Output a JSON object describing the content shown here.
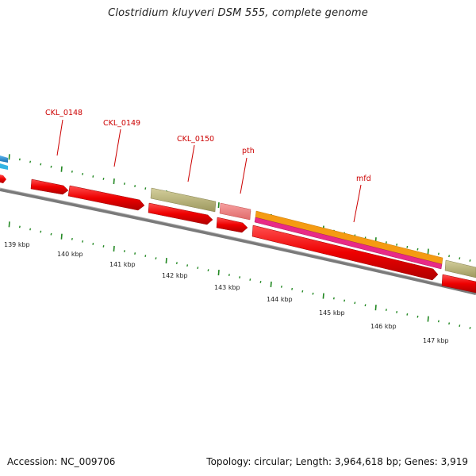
{
  "title": "Clostridium kluyveri DSM 555, complete genome",
  "footer": {
    "accession_label": "Accession:",
    "accession_value": "NC_009706",
    "topology_label": "Topology:",
    "topology_value": "circular",
    "length_label": "Length:",
    "length_value": "3,964,618 bp",
    "genes_label": "Genes:",
    "genes_value": "3,919"
  },
  "gene_labels": [
    {
      "name": "CKL_0148"
    },
    {
      "name": "CKL_0149"
    },
    {
      "name": "CKL_0150"
    },
    {
      "name": "pth"
    },
    {
      "name": "mfd"
    }
  ],
  "scale_ticks": [
    "139 kbp",
    "140 kbp",
    "141 kbp",
    "142 kbp",
    "143 kbp",
    "144 kbp",
    "145 kbp",
    "146 kbp",
    "147 kbp"
  ],
  "colors": {
    "cds": "#ee0000",
    "cds_light": "#f08080",
    "olive": "#b5b07a",
    "orange": "#f59b12",
    "magenta": "#e82a86",
    "blue": "#2a88d0",
    "backbone": "#7f7f7f",
    "tick": "#228822",
    "label": "#cc0000"
  }
}
